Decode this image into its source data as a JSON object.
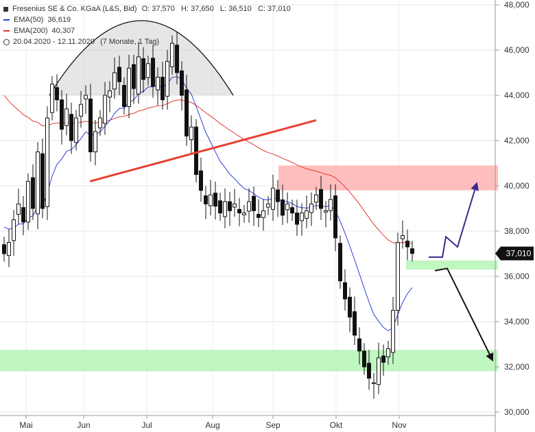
{
  "header": {
    "instrument": "Fresenius SE & Co. KGaA (L&S, Bid)",
    "ohlc": "O: 37,570   H: 37,650   L: 36,510   C: 37,010",
    "ema50_label": "EMA(50)",
    "ema50_value": "36,619",
    "ema200_label": "EMA(200)",
    "ema200_value": "40,307",
    "range": "20.04.2020 - 12.11.2020",
    "range_detail": "(7 Monate, 1 Tag)"
  },
  "last_price_label": "37,010",
  "colors": {
    "ema50": "#2b3fd6",
    "ema200": "#e0382e",
    "trendline": "#e84030",
    "resistance_zone": "#ffb3b3",
    "support_zone": "#b5f5b5",
    "arrow_up": "#3b2a8a",
    "arrow_down": "#111111",
    "candle": "#111111"
  },
  "chart_data": {
    "type": "candlestick",
    "title": "Fresenius SE & Co. KGaA (L&S, Bid)",
    "x_months": [
      "Mai",
      "Jun",
      "Jul",
      "Aug",
      "Sep",
      "Okt",
      "Nov"
    ],
    "y_ticks": [
      "30,000",
      "32,000",
      "34,000",
      "36,000",
      "38,000",
      "40,000",
      "42,000",
      "44,000",
      "46,000",
      "48,000"
    ],
    "ylim": [
      30,
      48
    ],
    "y_axis_side": "right",
    "grid": true,
    "ema50_start": 38.4,
    "ema200_start": 44.3,
    "close_path": [
      37.0,
      37.5,
      38.5,
      39.2,
      38.4,
      40.2,
      39.0,
      41.5,
      39.0,
      43.0,
      44.5,
      43.8,
      42.5,
      43.4,
      42.0,
      43.0,
      43.6,
      44.0,
      41.5,
      42.4,
      43.0,
      44.0,
      44.2,
      45.0,
      44.6,
      43.5,
      45.2,
      44.3,
      45.7,
      44.7,
      45.4,
      44.4,
      44.8,
      43.8,
      45.5,
      46.3,
      45.0,
      44.0,
      42.2,
      42.6,
      40.5,
      39.8,
      39.2,
      39.6,
      39.1,
      38.8,
      39.3,
      38.9,
      39.2,
      38.8,
      38.8,
      39.3,
      38.9,
      38.6,
      38.9,
      39.2,
      39.9,
      39.3,
      38.7,
      39.2,
      38.8,
      38.3,
      38.8,
      38.9,
      39.2,
      39.6,
      39.0,
      38.9,
      39.4,
      37.7,
      35.8,
      35.0,
      34.2,
      33.4,
      32.7,
      32.0,
      31.5,
      31.3,
      32.4,
      32.2,
      32.8,
      34.5,
      37.5,
      37.8,
      37.3,
      37.01
    ],
    "annotations": [
      {
        "type": "rounded-top-arc",
        "label": "",
        "from_month": "Mai",
        "to_month": "Aug",
        "top": 47.3
      },
      {
        "type": "trendline",
        "label": "",
        "from": [
          35.5,
          40.2
        ],
        "to": [
          62,
          42.9
        ]
      },
      {
        "type": "zone",
        "label": "",
        "top": 40.9,
        "bottom": 39.8,
        "from_month": "Sep"
      },
      {
        "type": "zone",
        "label": "",
        "top": 36.7,
        "bottom": 36.3,
        "from_month": "Nov"
      },
      {
        "type": "zone",
        "label": "",
        "top": 32.75,
        "bottom": 31.8
      },
      {
        "type": "scenario-arrow",
        "label": "",
        "direction": "up",
        "target": 40.1
      },
      {
        "type": "scenario-arrow",
        "label": "",
        "direction": "down",
        "target": 32.3
      }
    ]
  }
}
